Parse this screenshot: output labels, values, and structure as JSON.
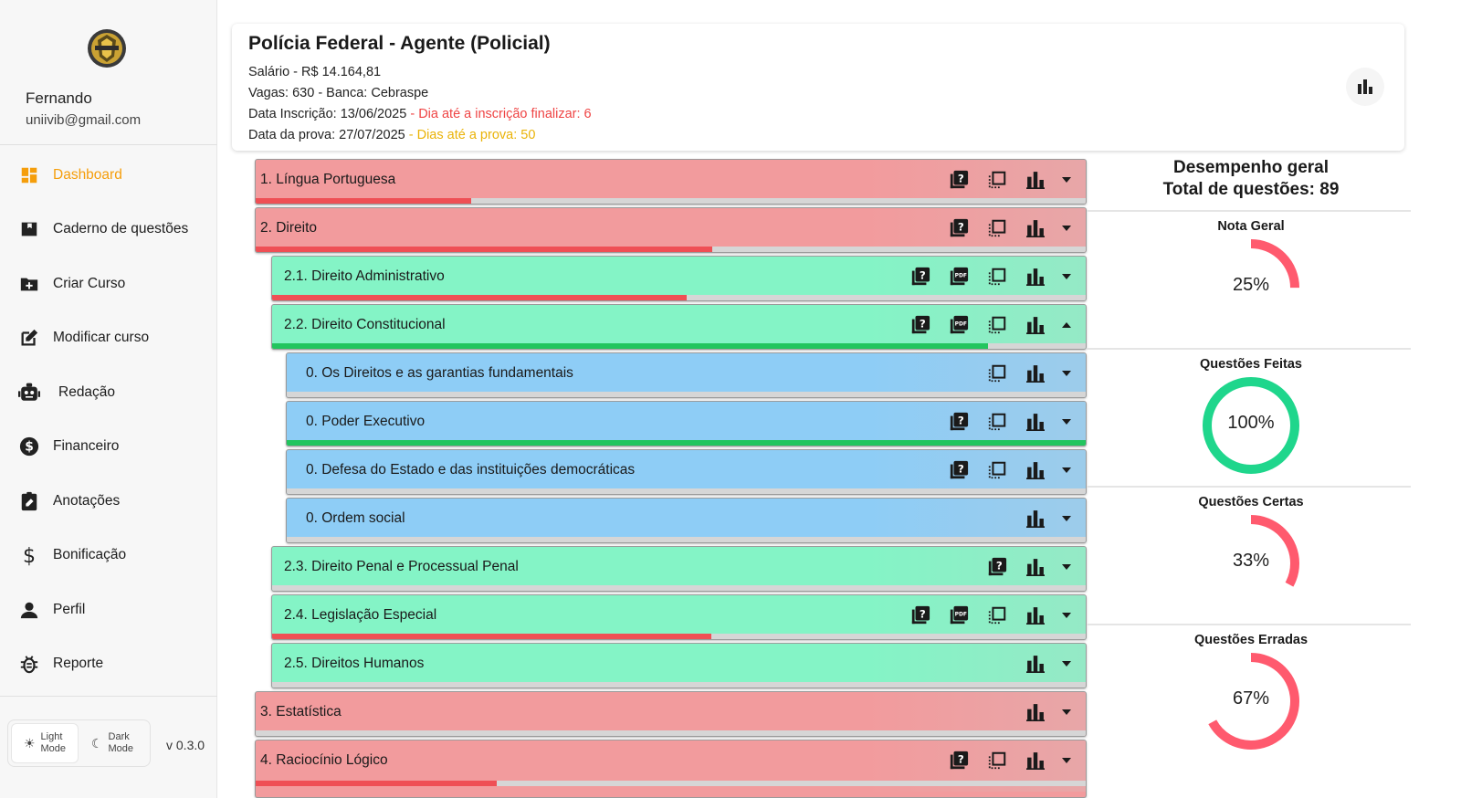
{
  "user": {
    "name": "Fernando",
    "email": "uniivib@gmail.com"
  },
  "nav": [
    {
      "label": "Dashboard",
      "icon": "dashboard-icon",
      "active": true
    },
    {
      "label": "Caderno de  questões",
      "icon": "notebook-icon"
    },
    {
      "label": "Criar Curso",
      "icon": "create-folder-icon"
    },
    {
      "label": "Modificar curso",
      "icon": "edit-icon"
    },
    {
      "label": "Redação",
      "icon": "robot-icon"
    },
    {
      "label": "Financeiro",
      "icon": "dollar-circle-icon"
    },
    {
      "label": "Anotações",
      "icon": "clipboard-edit-icon"
    },
    {
      "label": "Bonificação",
      "icon": "dollar-icon"
    },
    {
      "label": "Perfil",
      "icon": "person-icon"
    },
    {
      "label": "Reporte",
      "icon": "bug-icon"
    }
  ],
  "mode": {
    "light_1": "Light",
    "light_2": "Mode",
    "dark_1": "Dark",
    "dark_2": "Mode",
    "version": "v 0.3.0"
  },
  "header": {
    "title": "Polícia Federal - Agente (Policial)",
    "salary": "Salário - R$ 14.164,81",
    "vagas": "Vagas:   630 - Banca: Cebraspe",
    "inscricao_label": "Data Inscrição:  13/06/2025",
    "inscricao_sep": "  -  ",
    "inscricao_countdown": "Dia até a inscrição finalizar:  6",
    "prova_label": "Data da prova:  27/07/2025",
    "prova_sep": "  -  ",
    "prova_countdown": "Dias até a prova:  50"
  },
  "subjects": [
    {
      "label": "1. Língua Portuguesa",
      "color": "red",
      "progress": 0.26,
      "progress_color": "red",
      "icons": [
        "question-book-icon",
        "select-icon",
        "bar-chart-icon"
      ],
      "chevron": "down"
    },
    {
      "label": "2. Direito",
      "color": "red",
      "progress": 0.55,
      "progress_color": "red",
      "icons": [
        "question-book-icon",
        "select-icon",
        "bar-chart-icon"
      ],
      "chevron": "down"
    },
    {
      "label": "2.1. Direito Administrativo",
      "color": "green",
      "progress": 0.51,
      "progress_color": "red",
      "icons": [
        "question-book-icon",
        "pdf-icon",
        "select-icon",
        "bar-chart-icon"
      ],
      "chevron": "down"
    },
    {
      "label": "2.2. Direito Constitucional",
      "color": "green",
      "progress": 0.88,
      "progress_color": "green",
      "icons": [
        "question-book-icon",
        "pdf-icon",
        "select-icon",
        "bar-chart-icon"
      ],
      "chevron": "up"
    },
    {
      "label": "0. Os Direitos e as garantias fundamentais",
      "color": "blue",
      "progress": 0,
      "progress_color": "green",
      "icons": [
        "select-icon",
        "bar-chart-icon"
      ],
      "chevron": "down"
    },
    {
      "label": "0. Poder Executivo",
      "color": "blue",
      "progress": 1.0,
      "progress_color": "green",
      "icons": [
        "question-book-icon",
        "select-icon",
        "bar-chart-icon"
      ],
      "chevron": "down"
    },
    {
      "label": "0. Defesa do Estado e das instituições democráticas",
      "color": "blue",
      "progress": 0,
      "progress_color": "green",
      "icons": [
        "question-book-icon",
        "select-icon",
        "bar-chart-icon"
      ],
      "chevron": "down"
    },
    {
      "label": "0. Ordem social",
      "color": "blue",
      "progress": 0,
      "progress_color": "green",
      "icons": [
        "bar-chart-icon"
      ],
      "chevron": "down"
    },
    {
      "label": "2.3. Direito Penal e Processual Penal",
      "color": "green",
      "progress": 0,
      "progress_color": "red",
      "icons": [
        "question-book-icon",
        "bar-chart-icon"
      ],
      "chevron": "down"
    },
    {
      "label": "2.4. Legislação Especial",
      "color": "green",
      "progress": 0.54,
      "progress_color": "red",
      "icons": [
        "question-book-icon",
        "pdf-icon",
        "select-icon",
        "bar-chart-icon"
      ],
      "chevron": "down"
    },
    {
      "label": "2.5. Direitos Humanos",
      "color": "green",
      "progress": 0,
      "progress_color": "red",
      "icons": [
        "bar-chart-icon"
      ],
      "chevron": "down"
    },
    {
      "label": "3. Estatística",
      "color": "red",
      "progress": 0,
      "progress_color": "red",
      "icons": [
        "bar-chart-icon"
      ],
      "chevron": "down"
    },
    {
      "label": "4. Raciocínio Lógico",
      "color": "red",
      "progress": 0.29,
      "progress_color": "red",
      "icons": [
        "question-book-icon",
        "select-icon",
        "bar-chart-icon"
      ],
      "chevron": "down"
    }
  ],
  "performance": {
    "title_line1": "Desempenho geral",
    "title_line2": "Total de questões: 89",
    "gauges": [
      {
        "title": "Nota Geral",
        "percent": 25,
        "label": "25%",
        "color": "#ff5a6e"
      },
      {
        "title": "Questões Feitas",
        "percent": 100,
        "label": "100%",
        "color": "#1fd68c"
      },
      {
        "title": "Questões Certas",
        "percent": 33,
        "label": "33%",
        "color": "#ff5a6e"
      },
      {
        "title": "Questões Erradas",
        "percent": 67,
        "label": "67%",
        "color": "#ff5a6e"
      }
    ]
  }
}
